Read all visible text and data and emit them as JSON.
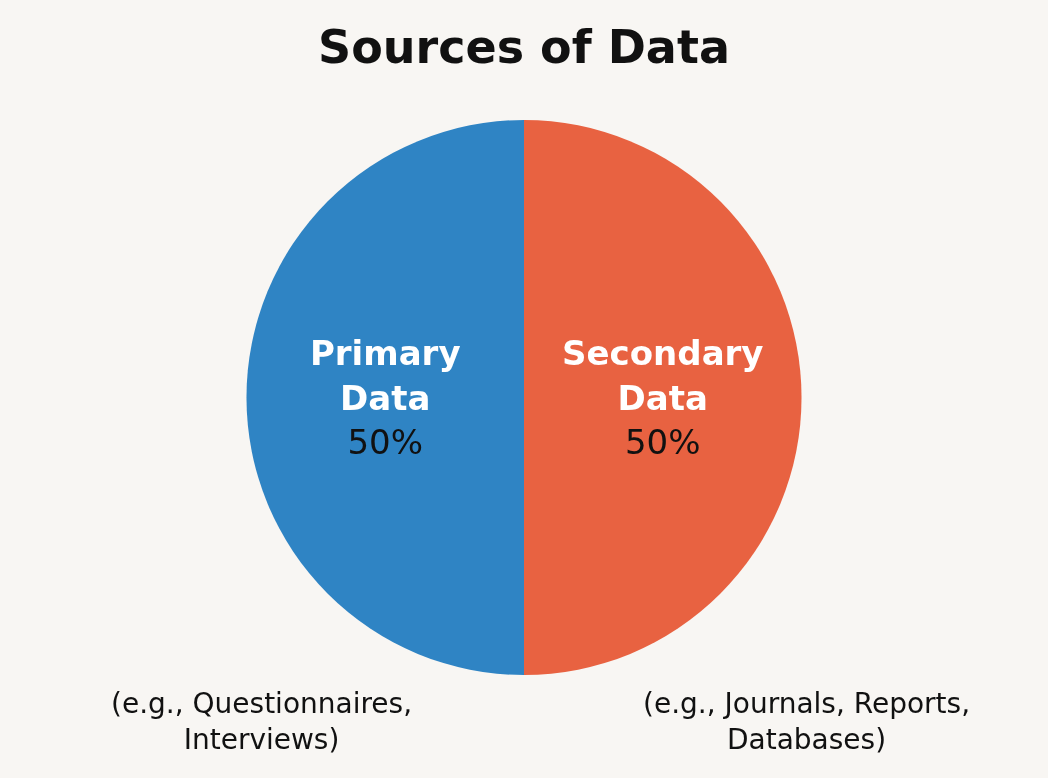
{
  "chart_data": {
    "type": "pie",
    "title": "Sources of Data",
    "categories": [
      "Primary Data",
      "Secondary Data"
    ],
    "values": [
      50,
      50
    ],
    "value_labels": [
      "50%",
      "50%"
    ],
    "colors": [
      "#2f84c4",
      "#e86241"
    ],
    "annotations": [
      "(e.g., Questionnaires, Interviews)",
      "(e.g., Journals, Reports, Databases)"
    ],
    "legend": false
  }
}
